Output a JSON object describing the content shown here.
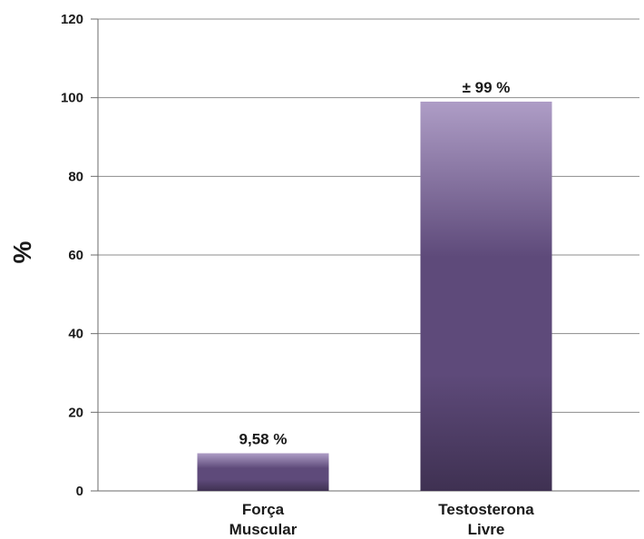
{
  "chart_data": {
    "type": "bar",
    "categories": [
      [
        "Força",
        "Muscular"
      ],
      [
        "Testosterona",
        "Livre"
      ]
    ],
    "values": [
      9.58,
      99
    ],
    "data_labels": [
      "9,58 %",
      "± 99 %"
    ],
    "ylabel": "%",
    "ylim": [
      0,
      120
    ],
    "yticks": [
      0,
      20,
      40,
      60,
      80,
      100,
      120
    ],
    "grid": true,
    "colors": {
      "bar_light": "#ae9dc6",
      "bar_mid": "#5e4a7a",
      "bar_dark": "#3f3152",
      "grid": "#8c8c8c"
    }
  }
}
